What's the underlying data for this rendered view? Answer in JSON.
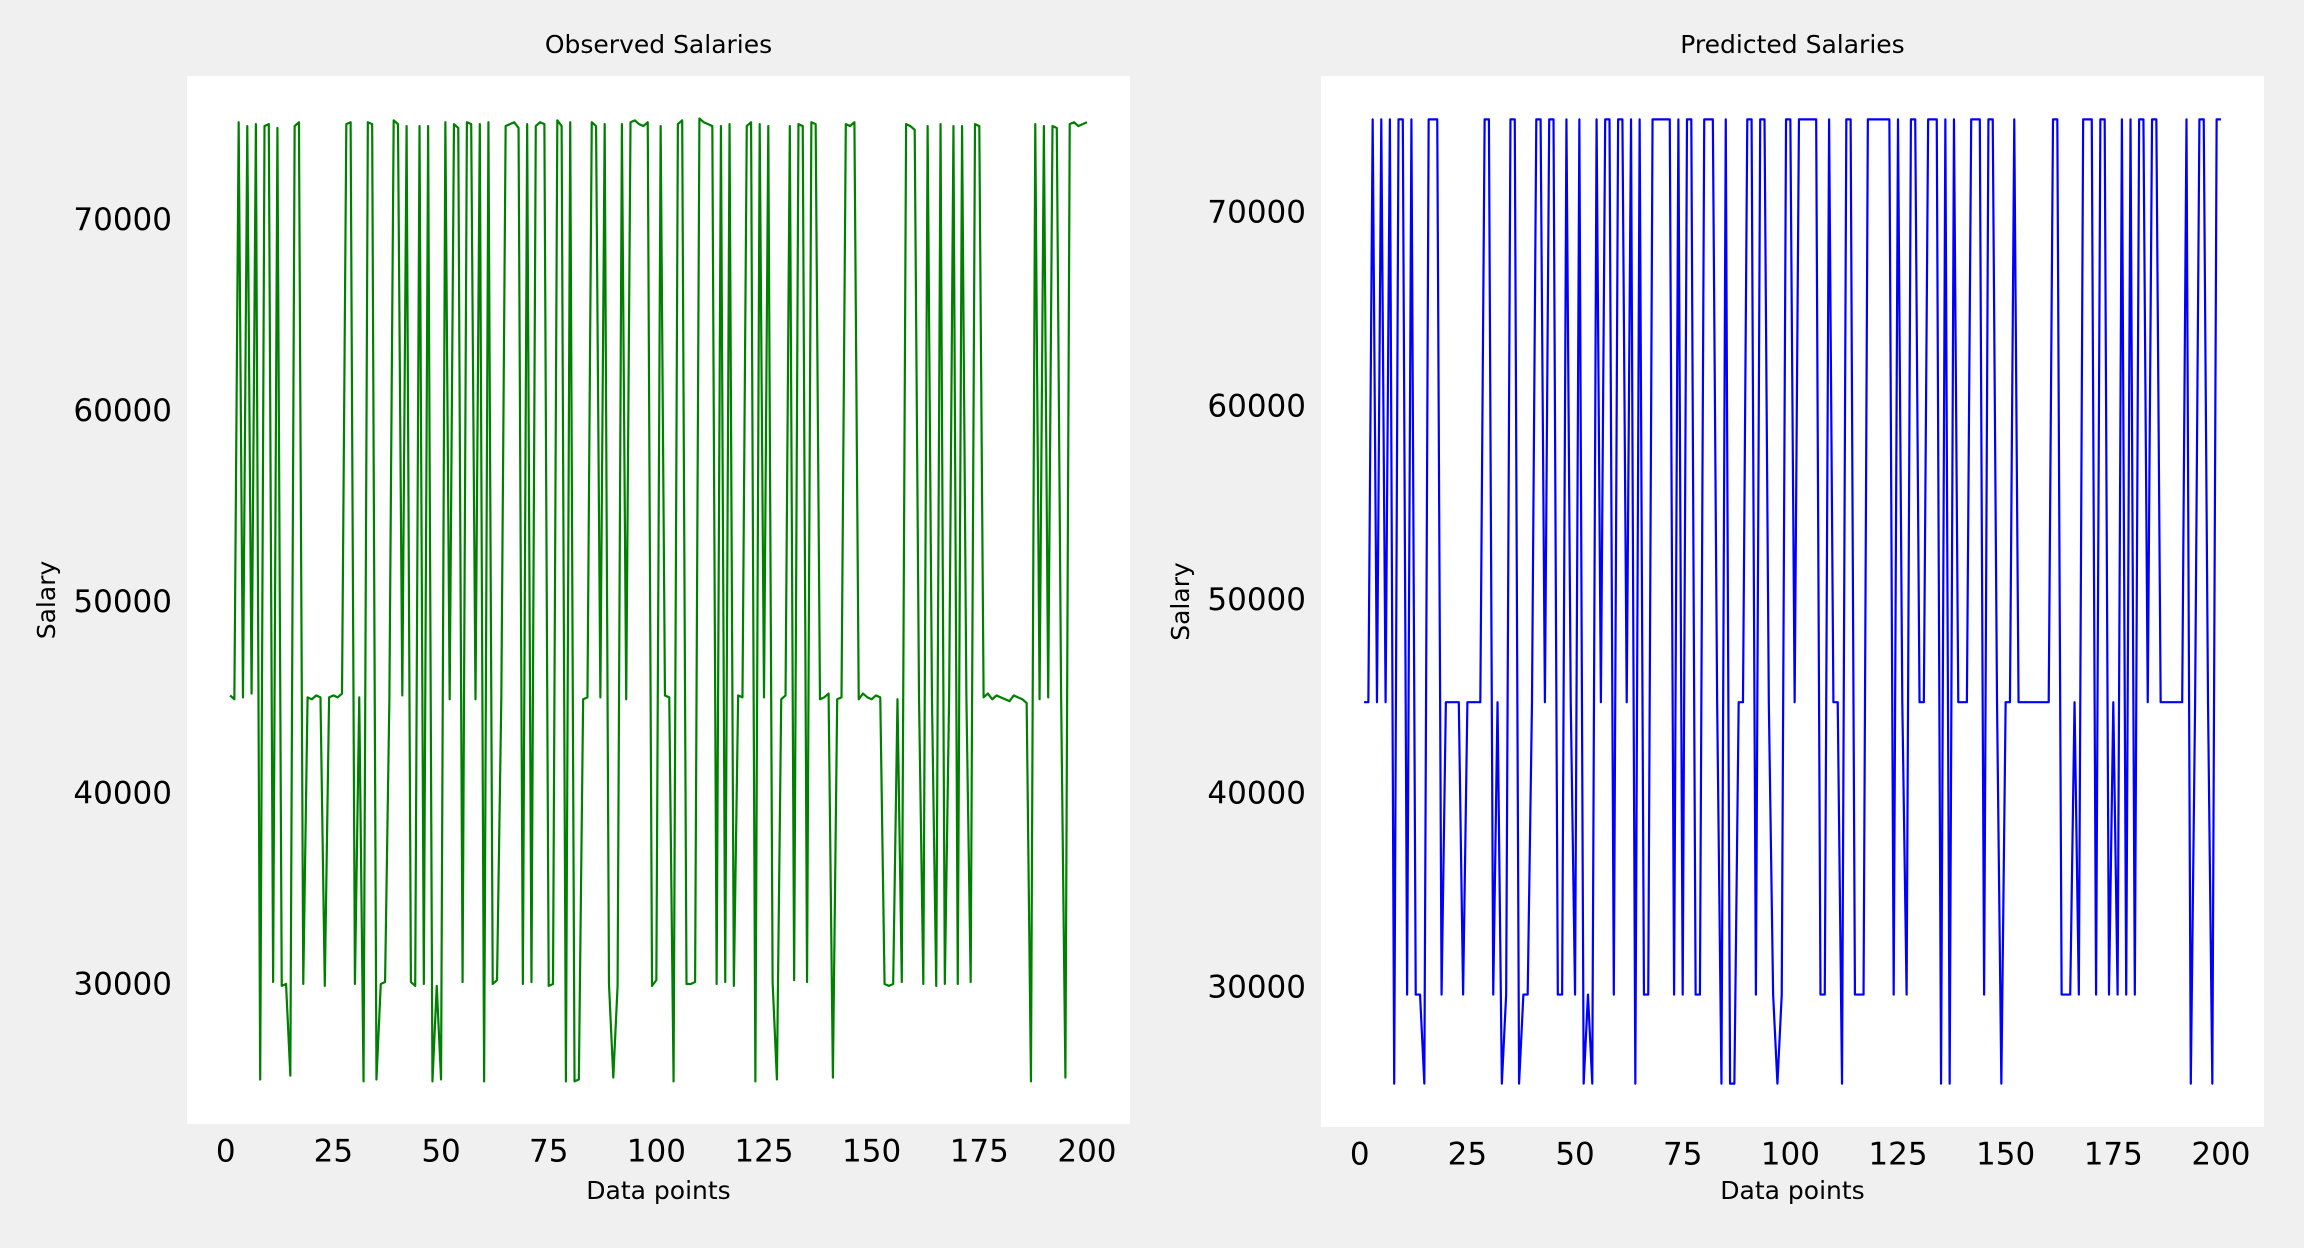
{
  "chart_data": [
    {
      "type": "line",
      "title": "Observed Salaries",
      "xlabel": "Data points",
      "ylabel": "Salary",
      "x": [
        1,
        2,
        3,
        4,
        5,
        6,
        7,
        8,
        9,
        10,
        11,
        12,
        13,
        14,
        15,
        16,
        17,
        18,
        19,
        20,
        21,
        22,
        23,
        24,
        25,
        26,
        27,
        28,
        29,
        30,
        31,
        32,
        33,
        34,
        35,
        36,
        37,
        38,
        39,
        40,
        41,
        42,
        43,
        44,
        45,
        46,
        47,
        48,
        49,
        50,
        51,
        52,
        53,
        54,
        55,
        56,
        57,
        58,
        59,
        60,
        61,
        62,
        63,
        64,
        65,
        66,
        67,
        68,
        69,
        70,
        71,
        72,
        73,
        74,
        75,
        76,
        77,
        78,
        79,
        80,
        81,
        82,
        83,
        84,
        85,
        86,
        87,
        88,
        89,
        90,
        91,
        92,
        93,
        94,
        95,
        96,
        97,
        98,
        99,
        100,
        101,
        102,
        103,
        104,
        105,
        106,
        107,
        108,
        109,
        110,
        111,
        112,
        113,
        114,
        115,
        116,
        117,
        118,
        119,
        120,
        121,
        122,
        123,
        124,
        125,
        126,
        127,
        128,
        129,
        130,
        131,
        132,
        133,
        134,
        135,
        136,
        137,
        138,
        139,
        140,
        141,
        142,
        143,
        144,
        145,
        146,
        147,
        148,
        149,
        150,
        151,
        152,
        153,
        154,
        155,
        156,
        157,
        158,
        159,
        160,
        161,
        162,
        163,
        164,
        165,
        166,
        167,
        168,
        169,
        170,
        171,
        172,
        173,
        174,
        175,
        176,
        177,
        178,
        179,
        180,
        181,
        182,
        183,
        184,
        185,
        186,
        187,
        188,
        189,
        190,
        191,
        192,
        193,
        194,
        195,
        196,
        197,
        198,
        199,
        200
      ],
      "series": [
        {
          "color": "#008000",
          "values": [
            45200,
            45000,
            75200,
            45100,
            75000,
            45300,
            75100,
            25100,
            75000,
            75100,
            30200,
            74900,
            30000,
            30100,
            25300,
            75000,
            75200,
            30100,
            45100,
            45000,
            45200,
            45100,
            30000,
            45100,
            45200,
            45100,
            45300,
            75100,
            75200,
            30100,
            45100,
            25000,
            75200,
            75100,
            25100,
            30100,
            30200,
            45000,
            75300,
            75100,
            45200,
            75000,
            30200,
            30000,
            75000,
            30100,
            75000,
            25000,
            30000,
            25100,
            75200,
            45000,
            75100,
            74900,
            30200,
            75200,
            75100,
            45000,
            75100,
            25000,
            75200,
            30100,
            30300,
            45100,
            75000,
            75100,
            75200,
            74900,
            30100,
            75100,
            30200,
            75000,
            75200,
            75100,
            30000,
            30100,
            75300,
            75000,
            25000,
            75200,
            25000,
            25100,
            45000,
            45100,
            75200,
            75000,
            45100,
            75100,
            30100,
            25200,
            30000,
            75100,
            45000,
            75200,
            75300,
            75100,
            75000,
            75200,
            30000,
            30300,
            75000,
            45200,
            45100,
            25000,
            75100,
            75300,
            30100,
            30100,
            30200,
            75400,
            75200,
            75100,
            75000,
            30100,
            75000,
            30200,
            75100,
            30000,
            45200,
            45100,
            75000,
            75200,
            25000,
            75100,
            45100,
            75000,
            30200,
            25100,
            45000,
            45200,
            75000,
            30300,
            75100,
            75000,
            30200,
            75200,
            75100,
            45000,
            45100,
            45300,
            25200,
            45000,
            45100,
            75100,
            75000,
            75200,
            45000,
            45300,
            45100,
            45000,
            45200,
            45100,
            30100,
            30000,
            30100,
            45000,
            30200,
            75100,
            75000,
            74800,
            45100,
            30100,
            75000,
            45200,
            30000,
            75100,
            30100,
            45200,
            75000,
            30100,
            75000,
            45200,
            30200,
            75100,
            75000,
            45100,
            45300,
            45000,
            45200,
            45100,
            45000,
            44900,
            45200,
            45100,
            45000,
            44800,
            25000,
            75100,
            45000,
            75000,
            45100,
            75000,
            74900,
            45200,
            25200,
            75100,
            75200,
            75000,
            75100,
            75200
          ]
        }
      ],
      "xlim": [
        -9,
        210
      ],
      "ylim": [
        22770,
        77620
      ],
      "xticks": [
        0,
        25,
        50,
        75,
        100,
        125,
        150,
        175,
        200
      ],
      "yticks": [
        30000,
        40000,
        50000,
        60000,
        70000
      ]
    },
    {
      "type": "line",
      "title": "Predicted Salaries",
      "xlabel": "Data points",
      "ylabel": "Salary",
      "x": [
        1,
        2,
        3,
        4,
        5,
        6,
        7,
        8,
        9,
        10,
        11,
        12,
        13,
        14,
        15,
        16,
        17,
        18,
        19,
        20,
        21,
        22,
        23,
        24,
        25,
        26,
        27,
        28,
        29,
        30,
        31,
        32,
        33,
        34,
        35,
        36,
        37,
        38,
        39,
        40,
        41,
        42,
        43,
        44,
        45,
        46,
        47,
        48,
        49,
        50,
        51,
        52,
        53,
        54,
        55,
        56,
        57,
        58,
        59,
        60,
        61,
        62,
        63,
        64,
        65,
        66,
        67,
        68,
        69,
        70,
        71,
        72,
        73,
        74,
        75,
        76,
        77,
        78,
        79,
        80,
        81,
        82,
        83,
        84,
        85,
        86,
        87,
        88,
        89,
        90,
        91,
        92,
        93,
        94,
        95,
        96,
        97,
        98,
        99,
        100,
        101,
        102,
        103,
        104,
        105,
        106,
        107,
        108,
        109,
        110,
        111,
        112,
        113,
        114,
        115,
        116,
        117,
        118,
        119,
        120,
        121,
        122,
        123,
        124,
        125,
        126,
        127,
        128,
        129,
        130,
        131,
        132,
        133,
        134,
        135,
        136,
        137,
        138,
        139,
        140,
        141,
        142,
        143,
        144,
        145,
        146,
        147,
        148,
        149,
        150,
        151,
        152,
        153,
        154,
        155,
        156,
        157,
        158,
        159,
        160,
        161,
        162,
        163,
        164,
        165,
        166,
        167,
        168,
        169,
        170,
        171,
        172,
        173,
        174,
        175,
        176,
        177,
        178,
        179,
        180,
        181,
        182,
        183,
        184,
        185,
        186,
        187,
        188,
        189,
        190,
        191,
        192,
        193,
        194,
        195,
        196,
        197,
        198,
        199,
        200
      ],
      "series": [
        {
          "color": "#0000ff",
          "values": [
            44800,
            44800,
            74900,
            44800,
            74900,
            44800,
            74900,
            25100,
            74900,
            74900,
            29700,
            74900,
            29700,
            29700,
            25100,
            74900,
            74900,
            74900,
            29700,
            44800,
            44800,
            44800,
            44800,
            29700,
            44800,
            44800,
            44800,
            44800,
            74900,
            74900,
            29700,
            44800,
            25100,
            29700,
            74900,
            74900,
            25100,
            29700,
            29700,
            44800,
            74900,
            74900,
            44800,
            74900,
            74900,
            29700,
            29700,
            74900,
            44800,
            29700,
            74900,
            25100,
            29700,
            25100,
            74900,
            44800,
            74900,
            74900,
            29700,
            74900,
            74900,
            44800,
            74900,
            25100,
            74900,
            29700,
            29700,
            74900,
            74900,
            74900,
            74900,
            74900,
            29700,
            74900,
            29700,
            74900,
            74900,
            29700,
            29700,
            74900,
            74900,
            74900,
            44800,
            25100,
            74900,
            25100,
            25100,
            44800,
            44800,
            74900,
            74900,
            29700,
            74900,
            74900,
            44800,
            29700,
            25100,
            29700,
            74900,
            74900,
            44800,
            74900,
            74900,
            74900,
            74900,
            74900,
            29700,
            29700,
            74900,
            44800,
            44800,
            25100,
            74900,
            74900,
            29700,
            29700,
            29700,
            74900,
            74900,
            74900,
            74900,
            74900,
            74900,
            29700,
            74900,
            44800,
            29700,
            74900,
            74900,
            44800,
            44800,
            74900,
            74900,
            74900,
            25100,
            74900,
            25100,
            74900,
            44800,
            44800,
            44800,
            74900,
            74900,
            74900,
            29700,
            74900,
            74900,
            44800,
            25100,
            44800,
            44800,
            74900,
            44800,
            44800,
            44800,
            44800,
            44800,
            44800,
            44800,
            44800,
            74900,
            74900,
            29700,
            29700,
            29700,
            44800,
            29700,
            74900,
            74900,
            74900,
            29700,
            74900,
            74900,
            29700,
            44800,
            29700,
            74900,
            29700,
            74900,
            29700,
            74900,
            74900,
            44800,
            74900,
            74900,
            44800,
            44800,
            44800,
            44800,
            44800,
            44800,
            74900,
            25100,
            44800,
            74900,
            74900,
            44800,
            25100,
            74900,
            74900
          ]
        }
      ],
      "xlim": [
        -9,
        210
      ],
      "ylim": [
        22860,
        77140
      ],
      "xticks": [
        0,
        25,
        50,
        75,
        100,
        125,
        150,
        175,
        200
      ],
      "yticks": [
        30000,
        40000,
        50000,
        60000,
        70000
      ]
    }
  ]
}
